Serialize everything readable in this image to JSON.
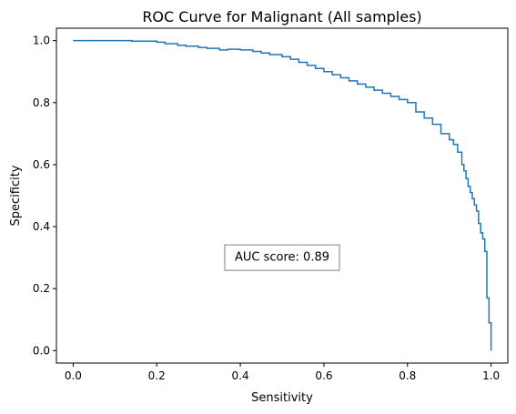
{
  "chart_data": {
    "type": "line",
    "title": "ROC Curve for Malignant (All samples)",
    "xlabel": "Sensitivity",
    "ylabel": "Specificity",
    "xlim": [
      -0.04,
      1.04
    ],
    "ylim": [
      -0.04,
      1.04
    ],
    "xticks": [
      0.0,
      0.2,
      0.4,
      0.6,
      0.8,
      1.0
    ],
    "yticks": [
      0.0,
      0.2,
      0.4,
      0.6,
      0.8,
      1.0
    ],
    "xtick_labels": [
      "0.0",
      "0.2",
      "0.4",
      "0.6",
      "0.8",
      "1.0"
    ],
    "ytick_labels": [
      "0.0",
      "0.2",
      "0.4",
      "0.6",
      "0.8",
      "1.0"
    ],
    "grid": false,
    "line_color": "#1f77b4",
    "series": [
      {
        "x": [
          0.0,
          0.12,
          0.14,
          0.2,
          0.22,
          0.25,
          0.27,
          0.3,
          0.32,
          0.35,
          0.37,
          0.4,
          0.43,
          0.45,
          0.47,
          0.5,
          0.52,
          0.54,
          0.56,
          0.58,
          0.6,
          0.62,
          0.64,
          0.66,
          0.68,
          0.7,
          0.72,
          0.74,
          0.76,
          0.78,
          0.8,
          0.82,
          0.84,
          0.86,
          0.88,
          0.9,
          0.91,
          0.92,
          0.93,
          0.935,
          0.94,
          0.945,
          0.95,
          0.955,
          0.96,
          0.965,
          0.97,
          0.975,
          0.98,
          0.985,
          0.99,
          0.995,
          1.0
        ],
        "y": [
          1.0,
          1.0,
          0.998,
          0.995,
          0.99,
          0.985,
          0.982,
          0.978,
          0.975,
          0.97,
          0.972,
          0.97,
          0.965,
          0.96,
          0.955,
          0.948,
          0.94,
          0.93,
          0.92,
          0.91,
          0.9,
          0.89,
          0.88,
          0.87,
          0.86,
          0.85,
          0.84,
          0.83,
          0.82,
          0.81,
          0.8,
          0.77,
          0.75,
          0.73,
          0.7,
          0.68,
          0.665,
          0.64,
          0.6,
          0.58,
          0.555,
          0.53,
          0.51,
          0.49,
          0.47,
          0.45,
          0.41,
          0.38,
          0.36,
          0.32,
          0.17,
          0.09,
          0.0
        ]
      }
    ],
    "annotation": {
      "text": "AUC score: 0.89",
      "x": 0.5,
      "y": 0.3
    }
  }
}
